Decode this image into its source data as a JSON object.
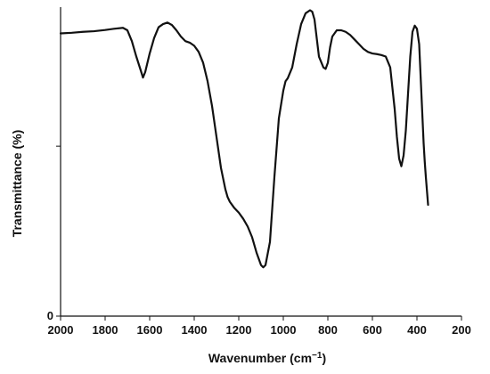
{
  "chart_data": {
    "type": "line",
    "title": "",
    "xlabel": "Wavenumber (cm",
    "xlabel_sup": "−1",
    "xlabel_close": ")",
    "ylabel": "Transmittance (%)",
    "xlim": [
      2000,
      200
    ],
    "ylim": [
      0,
      100
    ],
    "x_ticks": [
      2000,
      1800,
      1600,
      1400,
      1200,
      1000,
      800,
      600,
      400,
      200
    ],
    "x_tick_labels": [
      "2000",
      "1800",
      "1600",
      "1400",
      "1200",
      "1000",
      "800",
      "600",
      "400",
      "200"
    ],
    "y_ticks": [
      0,
      55
    ],
    "y_tick_labels": [
      "0",
      ""
    ],
    "grid": false,
    "legend": "none",
    "series": [
      {
        "color": "#111111",
        "x": [
          2000,
          1950,
          1900,
          1850,
          1800,
          1760,
          1720,
          1700,
          1680,
          1660,
          1640,
          1630,
          1620,
          1600,
          1580,
          1560,
          1540,
          1520,
          1500,
          1480,
          1460,
          1440,
          1420,
          1400,
          1380,
          1360,
          1340,
          1320,
          1300,
          1280,
          1260,
          1250,
          1240,
          1220,
          1200,
          1180,
          1160,
          1140,
          1120,
          1100,
          1090,
          1080,
          1060,
          1040,
          1020,
          1000,
          990,
          980,
          960,
          940,
          920,
          900,
          880,
          870,
          860,
          850,
          840,
          820,
          810,
          800,
          790,
          780,
          760,
          740,
          720,
          700,
          680,
          660,
          640,
          620,
          600,
          580,
          560,
          540,
          520,
          500,
          490,
          480,
          470,
          460,
          450,
          440,
          430,
          420,
          410,
          400,
          390,
          385,
          380,
          375,
          370,
          365,
          360,
          355,
          350
        ],
        "y": [
          91.5,
          91.7,
          92.0,
          92.2,
          92.6,
          93.0,
          93.3,
          92.5,
          89.0,
          84.0,
          79.5,
          77.2,
          79.0,
          85.0,
          90.0,
          93.5,
          94.5,
          95.0,
          94.2,
          92.5,
          90.5,
          89.0,
          88.5,
          87.5,
          85.5,
          82.0,
          76.0,
          68.0,
          58.0,
          48.0,
          41.0,
          38.5,
          37.0,
          35.0,
          33.5,
          31.5,
          29.0,
          25.5,
          20.5,
          16.5,
          15.8,
          16.5,
          24.0,
          45.0,
          64.0,
          73.0,
          76.0,
          77.0,
          80.5,
          88.0,
          94.5,
          98.0,
          99.0,
          98.5,
          96.0,
          90.0,
          84.0,
          80.5,
          80.0,
          82.0,
          87.0,
          90.5,
          92.5,
          92.5,
          92.0,
          91.0,
          89.5,
          88.0,
          86.5,
          85.5,
          85.0,
          84.8,
          84.5,
          84.0,
          80.5,
          67.0,
          58.0,
          51.0,
          48.5,
          52.0,
          60.0,
          72.0,
          84.0,
          92.0,
          94.0,
          93.0,
          88.0,
          80.0,
          72.0,
          64.0,
          56.0,
          50.0,
          45.0,
          40.5,
          36.0
        ]
      }
    ]
  }
}
